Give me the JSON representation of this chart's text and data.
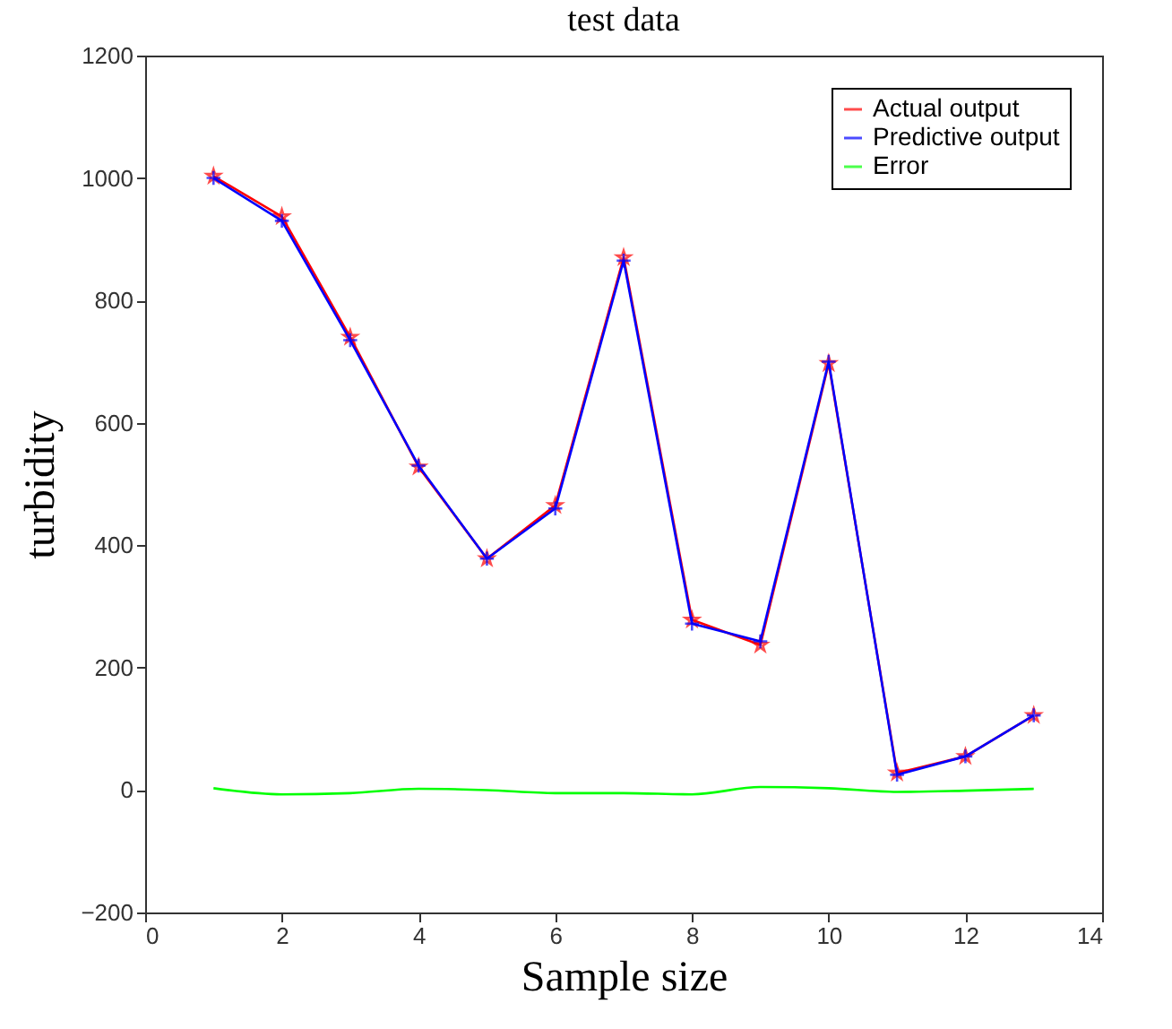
{
  "chart_data": {
    "type": "line",
    "title": "test data",
    "xlabel": "Sample size",
    "ylabel": "turbidity",
    "x": [
      1,
      2,
      3,
      4,
      5,
      6,
      7,
      8,
      9,
      10,
      11,
      12,
      13
    ],
    "series": [
      {
        "name": "Actual output",
        "color": "#ff0000",
        "marker": "star",
        "values": [
          1003,
          937,
          740,
          528,
          378,
          465,
          870,
          278,
          237,
          697,
          28,
          55,
          122
        ]
      },
      {
        "name": "Predictive output",
        "color": "#0000ff",
        "marker": "cross",
        "values": [
          1000,
          930,
          735,
          530,
          378,
          460,
          865,
          272,
          243,
          700,
          25,
          55,
          122
        ]
      },
      {
        "name": "Error",
        "color": "#00ff00",
        "marker": "none",
        "values": [
          3,
          -7,
          -5,
          2,
          0,
          -5,
          -5,
          -7,
          5,
          3,
          -3,
          -1,
          2
        ]
      }
    ],
    "xlim": [
      0,
      14
    ],
    "xticks": [
      0,
      2,
      4,
      6,
      8,
      10,
      12,
      14
    ],
    "ylim": [
      -200,
      1200
    ],
    "yticks": [
      -200,
      0,
      200,
      400,
      600,
      800,
      1000,
      1200
    ],
    "grid": false,
    "legend": "top right",
    "line_style": "solid"
  }
}
